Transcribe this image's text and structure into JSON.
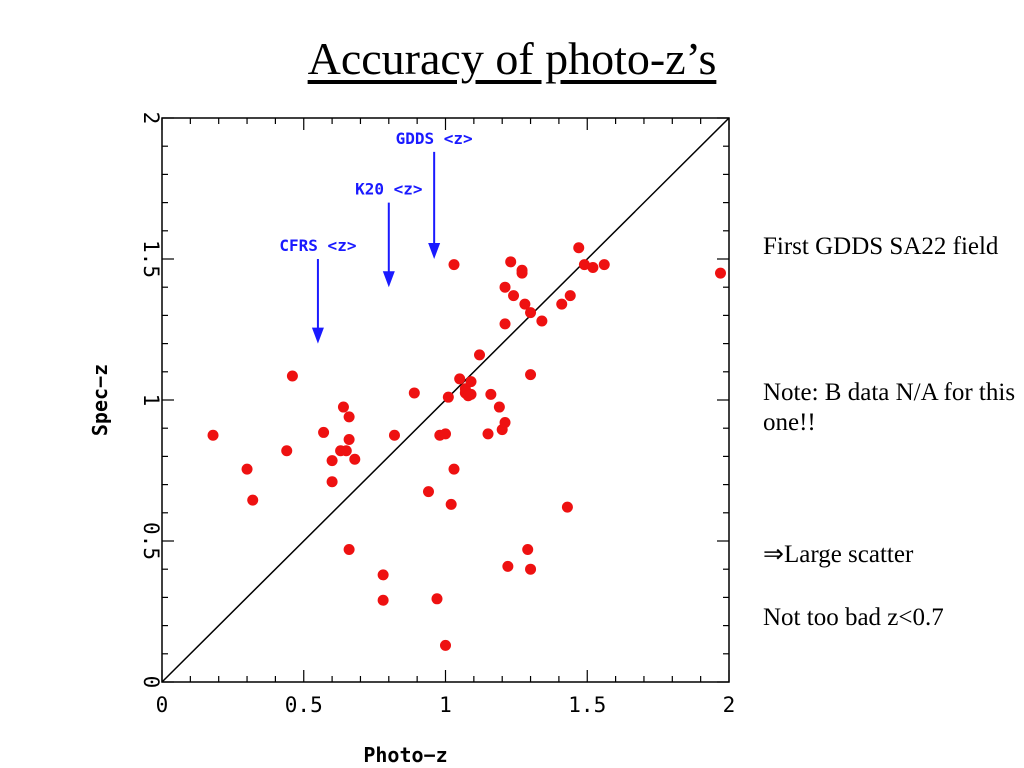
{
  "slide": {
    "title": "Accuracy of photo-z’s",
    "notes": [
      "First GDDS SA22 field",
      "Note: B data N/A for this one!!",
      "⇒Large scatter",
      "Not too bad z<0.7"
    ]
  },
  "chart_data": {
    "type": "scatter",
    "title": "",
    "xlabel": "Photo−z",
    "ylabel": "Spec−z",
    "xlim": [
      0,
      2
    ],
    "ylim": [
      0,
      2
    ],
    "xticks": [
      0,
      0.5,
      1,
      1.5,
      2
    ],
    "yticks": [
      0,
      0.5,
      1,
      1.5,
      2
    ],
    "xtick_labels": [
      "0",
      "0.5",
      "1",
      "1.5",
      "2"
    ],
    "ytick_labels": [
      "0",
      "0.5",
      "1",
      "1.5",
      "2"
    ],
    "grid": false,
    "reference_line": {
      "from": [
        0,
        0
      ],
      "to": [
        2,
        2
      ]
    },
    "point_color": "#ee1111",
    "annotation_color": "#1a1aff",
    "annotations": [
      {
        "label": "GDDS <z>",
        "x": 0.96,
        "y_top": 1.88,
        "y_tip": 1.5
      },
      {
        "label": "K20 <z>",
        "x": 0.8,
        "y_top": 1.7,
        "y_tip": 1.4
      },
      {
        "label": "CFRS <z>",
        "x": 0.55,
        "y_top": 1.5,
        "y_tip": 1.2
      }
    ],
    "points": [
      [
        0.18,
        0.875
      ],
      [
        0.3,
        0.755
      ],
      [
        0.32,
        0.645
      ],
      [
        0.44,
        0.82
      ],
      [
        0.46,
        1.085
      ],
      [
        0.57,
        0.885
      ],
      [
        0.6,
        0.785
      ],
      [
        0.6,
        0.71
      ],
      [
        0.63,
        0.82
      ],
      [
        0.64,
        0.975
      ],
      [
        0.65,
        0.82
      ],
      [
        0.66,
        0.86
      ],
      [
        0.66,
        0.94
      ],
      [
        0.68,
        0.79
      ],
      [
        0.66,
        0.47
      ],
      [
        0.78,
        0.38
      ],
      [
        0.78,
        0.29
      ],
      [
        0.82,
        0.875
      ],
      [
        0.89,
        1.025
      ],
      [
        0.94,
        0.675
      ],
      [
        0.97,
        0.295
      ],
      [
        0.98,
        0.875
      ],
      [
        1.0,
        0.88
      ],
      [
        1.0,
        0.13
      ],
      [
        1.01,
        1.01
      ],
      [
        1.02,
        0.63
      ],
      [
        1.03,
        1.48
      ],
      [
        1.03,
        0.755
      ],
      [
        1.05,
        1.075
      ],
      [
        1.07,
        1.025
      ],
      [
        1.07,
        1.04
      ],
      [
        1.08,
        1.015
      ],
      [
        1.09,
        1.02
      ],
      [
        1.09,
        1.065
      ],
      [
        1.12,
        1.16
      ],
      [
        1.15,
        0.88
      ],
      [
        1.16,
        1.02
      ],
      [
        1.19,
        0.975
      ],
      [
        1.2,
        0.895
      ],
      [
        1.21,
        0.92
      ],
      [
        1.21,
        1.27
      ],
      [
        1.21,
        1.4
      ],
      [
        1.22,
        0.41
      ],
      [
        1.23,
        1.49
      ],
      [
        1.24,
        1.37
      ],
      [
        1.27,
        1.45
      ],
      [
        1.27,
        1.46
      ],
      [
        1.28,
        1.34
      ],
      [
        1.29,
        0.47
      ],
      [
        1.3,
        1.31
      ],
      [
        1.3,
        1.09
      ],
      [
        1.3,
        0.4
      ],
      [
        1.34,
        1.28
      ],
      [
        1.41,
        1.34
      ],
      [
        1.43,
        0.62
      ],
      [
        1.44,
        1.37
      ],
      [
        1.47,
        1.54
      ],
      [
        1.49,
        1.48
      ],
      [
        1.52,
        1.47
      ],
      [
        1.56,
        1.48
      ],
      [
        1.97,
        1.45
      ]
    ]
  }
}
